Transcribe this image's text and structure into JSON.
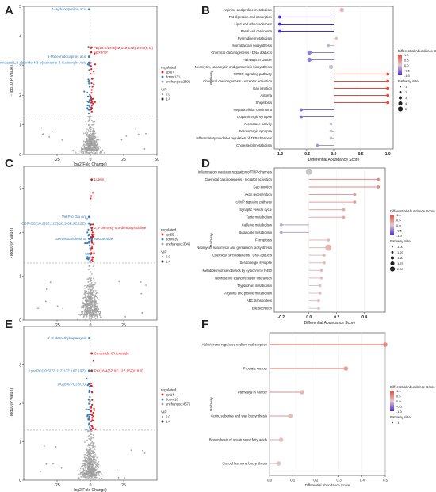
{
  "figure": {
    "panel_labels": [
      "A",
      "B",
      "C",
      "D",
      "E",
      "F"
    ]
  },
  "volcano_common": {
    "xlabel": "log2(Fold Change)",
    "ylabel": "- log10(P value)",
    "legend_regulated_title": "regulated",
    "legend_vip_title": "VIP",
    "colors": {
      "up": "#e41a1c",
      "down": "#377eb8",
      "unchanged": "#9e9e9e"
    }
  },
  "lollipop_common": {
    "ylabel": "Pathway",
    "xlabel": "Differential Abundance Score",
    "legend_color_title": "Differential Abundance Score",
    "legend_size_title": "Pathway size"
  },
  "chart_data": [
    {
      "panel": "A",
      "type": "scatter",
      "xlabel": "log2(Fold Change)",
      "ylabel": "- log10(P value)",
      "xlim": [
        -50,
        50
      ],
      "ylim": [
        0,
        5
      ],
      "x_ticks": [
        -25,
        0,
        25,
        50
      ],
      "y_ticks": [
        0,
        1,
        2,
        3,
        4,
        5
      ],
      "legend": [
        "up:87",
        "down:131",
        "unchanged:2891"
      ],
      "vip_legend": [
        "0.0",
        "1.4"
      ],
      "annotations": [
        {
          "text": "4-Hydroxyproline acid",
          "x": -1,
          "y": 4.9,
          "color": "down"
        },
        {
          "text": "PE(20:5/20:3(8Z,11Z,14Z)-2OH(5,6))",
          "x": 0.5,
          "y": 3.6,
          "color": "up"
        },
        {
          "text": "Apixarlor",
          "x": 0.5,
          "y": 3.45,
          "color": "up"
        },
        {
          "text": "6-Maleimidocaproic acid",
          "x": -1,
          "y": 3.3,
          "color": "down"
        },
        {
          "text": "1-Oxo-Th-Benzimidazo[1,2-a]pyrido[4,3-b]quinoline-3-Carboxylic Acid",
          "x": -1,
          "y": 3.1,
          "color": "down"
        }
      ]
    },
    {
      "panel": "B",
      "type": "bar",
      "categories": [
        "Arginine and proline metabolism",
        "Fat digestion and absorption",
        "Lipid and atherosclerosis",
        "Basal cell carcinoma",
        "Pyrimidine metabolism",
        "Monobactam biosynthesis",
        "Chemical carcinogenesis - DNA adducts",
        "Pathways in cancer",
        "Neomycin, kanamycin and gentamicin biosynthesis",
        "MTOR signaling pathway",
        "Chemical carcinogenesis - receptor activation",
        "Gap junction",
        "Asthma",
        "Shigellosis",
        "Hepatocellular carcinoma",
        "Dopaminergic synapse",
        "Aromatase activity",
        "Serotonergic synapse",
        "Inflammatory mediator regulation of TRP channels",
        "Cholesterol metabolism"
      ],
      "values": [
        0.15,
        -1.0,
        -1.0,
        -1.0,
        0.05,
        -0.1,
        -0.45,
        -0.45,
        -0.05,
        1.0,
        1.0,
        1.0,
        1.0,
        1.0,
        -0.6,
        -0.6,
        -0.05,
        -0.05,
        -0.05,
        -0.3
      ],
      "sizes": [
        2,
        1,
        1,
        1,
        1,
        1,
        2,
        2,
        2,
        1,
        1,
        1,
        1,
        1,
        1,
        1,
        1,
        1,
        1,
        1
      ],
      "xlim": [
        -1.1,
        1.1
      ],
      "x_ticks": [
        "-1.0",
        "-0.5",
        "0.0",
        "0.5",
        "1.0"
      ],
      "color_ticks": [
        "1.0",
        "0.5",
        "0.0",
        "-0.5",
        "-1.0"
      ],
      "size_ticks": [
        "1",
        "2",
        "3",
        "4",
        "5"
      ]
    },
    {
      "panel": "C",
      "type": "scatter",
      "xlabel": "log2(Fold Change)",
      "ylabel": "- log10(P value)",
      "xlim": [
        -50,
        50
      ],
      "ylim": [
        0,
        3.5
      ],
      "x_ticks": [
        -25,
        0,
        25
      ],
      "y_ticks": [
        0,
        1,
        2,
        3
      ],
      "legend": [
        "up:55",
        "down:39",
        "unchanged:3046"
      ],
      "vip_legend": [
        "0.0",
        "1.4"
      ],
      "annotations": [
        {
          "text": "Lutein",
          "x": 1,
          "y": 3.2,
          "color": "up"
        },
        {
          "text": "Val Pro Glu Arg",
          "x": -1,
          "y": 2.35,
          "color": "down"
        },
        {
          "text": "CDP-DG(18:2(9Z,12Z)/18:3(6Z,9Z,12Z))",
          "x": -1,
          "y": 2.2,
          "color": "down"
        },
        {
          "text": "2,3-Dienoxy-4,5-dienoxyindoline",
          "x": 1,
          "y": 2.1,
          "color": "up"
        },
        {
          "text": "Secoisolariciresinol",
          "x": -1,
          "y": 1.85,
          "color": "down"
        },
        {
          "text": "Neopeptide",
          "x": 1,
          "y": 1.85,
          "color": "down"
        }
      ]
    },
    {
      "panel": "D",
      "type": "bar",
      "categories": [
        "Inflammatory mediator regulation of TRP channels",
        "Chemical carcinogenesis - receptor activation",
        "Gap junction",
        "Axon regeneration",
        "cAMP signaling pathway",
        "Synaptic vesicle cycle",
        "Taste metabolism",
        "Caffeine metabolism",
        "Butanoate metabolism",
        "Ferroptosis",
        "Neomycin, kanamycin and gentamicin biosynthesis",
        "Chemical carcinogenesis - DNA adducts",
        "Serotonergic synapse",
        "Metabolism of xenobiotics by cytochrome P450",
        "Neuroactive ligand-receptor interaction",
        "Tryptophan metabolism",
        "Arginine and proline metabolism",
        "ABC transporters",
        "Bile secretion"
      ],
      "values": [
        0.0,
        0.5,
        0.5,
        0.33,
        0.33,
        0.25,
        0.25,
        -0.2,
        -0.2,
        0.14,
        0.14,
        0.11,
        0.11,
        0.09,
        0.09,
        0.08,
        0.08,
        0.07,
        0.07
      ],
      "sizes": [
        2.0,
        1.0,
        1.0,
        1.0,
        1.0,
        1.0,
        1.0,
        1.0,
        1.0,
        1.0,
        2.0,
        1.0,
        1.0,
        1.0,
        1.0,
        1.0,
        1.0,
        1.0,
        1.0
      ],
      "xlim": [
        -0.25,
        0.55
      ],
      "x_ticks": [
        "-0.2",
        "0.0",
        "0.2",
        "0.4"
      ],
      "color_ticks": [
        "1.0",
        "0.5",
        "0.0",
        "-0.5",
        "-1.0"
      ],
      "size_ticks": [
        "1.00",
        "1.25",
        "1.50",
        "1.75",
        "2.00"
      ]
    },
    {
      "panel": "E",
      "type": "scatter",
      "xlabel": "log2(Fold Change)",
      "ylabel": "- log10(P value)",
      "xlim": [
        -50,
        50
      ],
      "ylim": [
        0,
        4
      ],
      "x_ticks": [
        -25,
        0,
        25
      ],
      "y_ticks": [
        0,
        1,
        2,
        3
      ],
      "legend": [
        "up:14",
        "down:18",
        "unchanged:4675"
      ],
      "vip_legend": [
        "0.0",
        "1.4"
      ],
      "annotations": [
        {
          "text": "4'-O-demethylrapamycin",
          "x": -1,
          "y": 3.7,
          "color": "down"
        },
        {
          "text": "Ceramide 6/Hexoside",
          "x": 1,
          "y": 3.3,
          "color": "up"
        },
        {
          "text": "LysoPC(20:5(7Z,11Z,13Z,16Z,19Z))",
          "x": -1,
          "y": 2.85,
          "color": "down"
        },
        {
          "text": "PC(18:4(6Z,9Z,12Z,15Z)/18:0)",
          "x": 1,
          "y": 2.85,
          "color": "up"
        },
        {
          "text": "DG(8:0/PGJ2/0:0)",
          "x": -1,
          "y": 2.5,
          "color": "down"
        }
      ]
    },
    {
      "panel": "F",
      "type": "bar",
      "categories": [
        "Aldosterone-regulated sodium reabsorption",
        "Prostate cancer",
        "Pathways in cancer",
        "Cutin, suberine and wax biosynthesis",
        "Biosynthesis of unsaturated fatty acids",
        "Steroid hormone biosynthesis"
      ],
      "values": [
        0.5,
        0.33,
        0.14,
        0.09,
        0.05,
        0.04
      ],
      "sizes": [
        1,
        1,
        1,
        1,
        1,
        1
      ],
      "xlim": [
        0,
        0.5
      ],
      "x_ticks": [
        "0.0",
        "0.1",
        "0.2",
        "0.3",
        "0.4",
        "0.5"
      ],
      "color_ticks": [
        "1.0",
        "0.5",
        "0.0",
        "-0.5",
        "-1.0"
      ],
      "size_ticks": [
        "1"
      ]
    }
  ]
}
